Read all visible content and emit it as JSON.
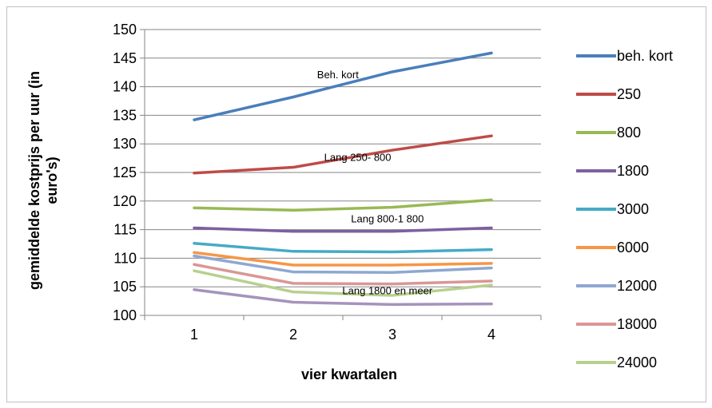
{
  "chart_data": {
    "type": "line",
    "xlabel": "vier kwartalen",
    "ylabel": "gemiddelde kostprijs per uur (in euro's)",
    "x": [
      1,
      2,
      3,
      4
    ],
    "ylim": [
      100,
      150
    ],
    "yticks": [
      100,
      105,
      110,
      115,
      120,
      125,
      130,
      135,
      140,
      145,
      150
    ],
    "grid": true,
    "legend_position": "right",
    "series": [
      {
        "name": "beh. kort",
        "color": "#4a7ebb",
        "values": [
          134.2,
          138.2,
          142.6,
          145.9
        ]
      },
      {
        "name": "250",
        "color": "#be4b48",
        "values": [
          124.9,
          125.9,
          128.9,
          131.4
        ]
      },
      {
        "name": "800",
        "color": "#98b954",
        "values": [
          118.8,
          118.4,
          118.9,
          120.2
        ]
      },
      {
        "name": "1800",
        "color": "#7d60a0",
        "values": [
          115.3,
          114.7,
          114.7,
          115.3
        ]
      },
      {
        "name": "3000",
        "color": "#46aac5",
        "values": [
          112.6,
          111.2,
          111.1,
          111.5
        ]
      },
      {
        "name": "6000",
        "color": "#f79646",
        "values": [
          111.0,
          108.8,
          108.8,
          109.1
        ]
      },
      {
        "name": "12000",
        "color": "#8fa7d1",
        "values": [
          110.4,
          107.6,
          107.5,
          108.3
        ]
      },
      {
        "name": "18000",
        "color": "#d99795",
        "values": [
          108.9,
          105.6,
          105.5,
          106.0
        ]
      },
      {
        "name": "24000",
        "color": "#b8d08e",
        "values": [
          107.8,
          104.1,
          103.5,
          105.3
        ]
      },
      {
        "name": "",
        "color": "#a593bd",
        "values": [
          104.5,
          102.3,
          101.9,
          102.0
        ]
      }
    ],
    "annotations": [
      {
        "text": "Beh. kort",
        "x": 2.45,
        "y": 141.5
      },
      {
        "text": "Lang 250- 800",
        "x": 2.65,
        "y": 127.0
      },
      {
        "text": "Lang 800-1 800",
        "x": 2.95,
        "y": 116.3
      },
      {
        "text": "Lang 1800 en meer",
        "x": 2.95,
        "y": 103.7
      }
    ]
  }
}
